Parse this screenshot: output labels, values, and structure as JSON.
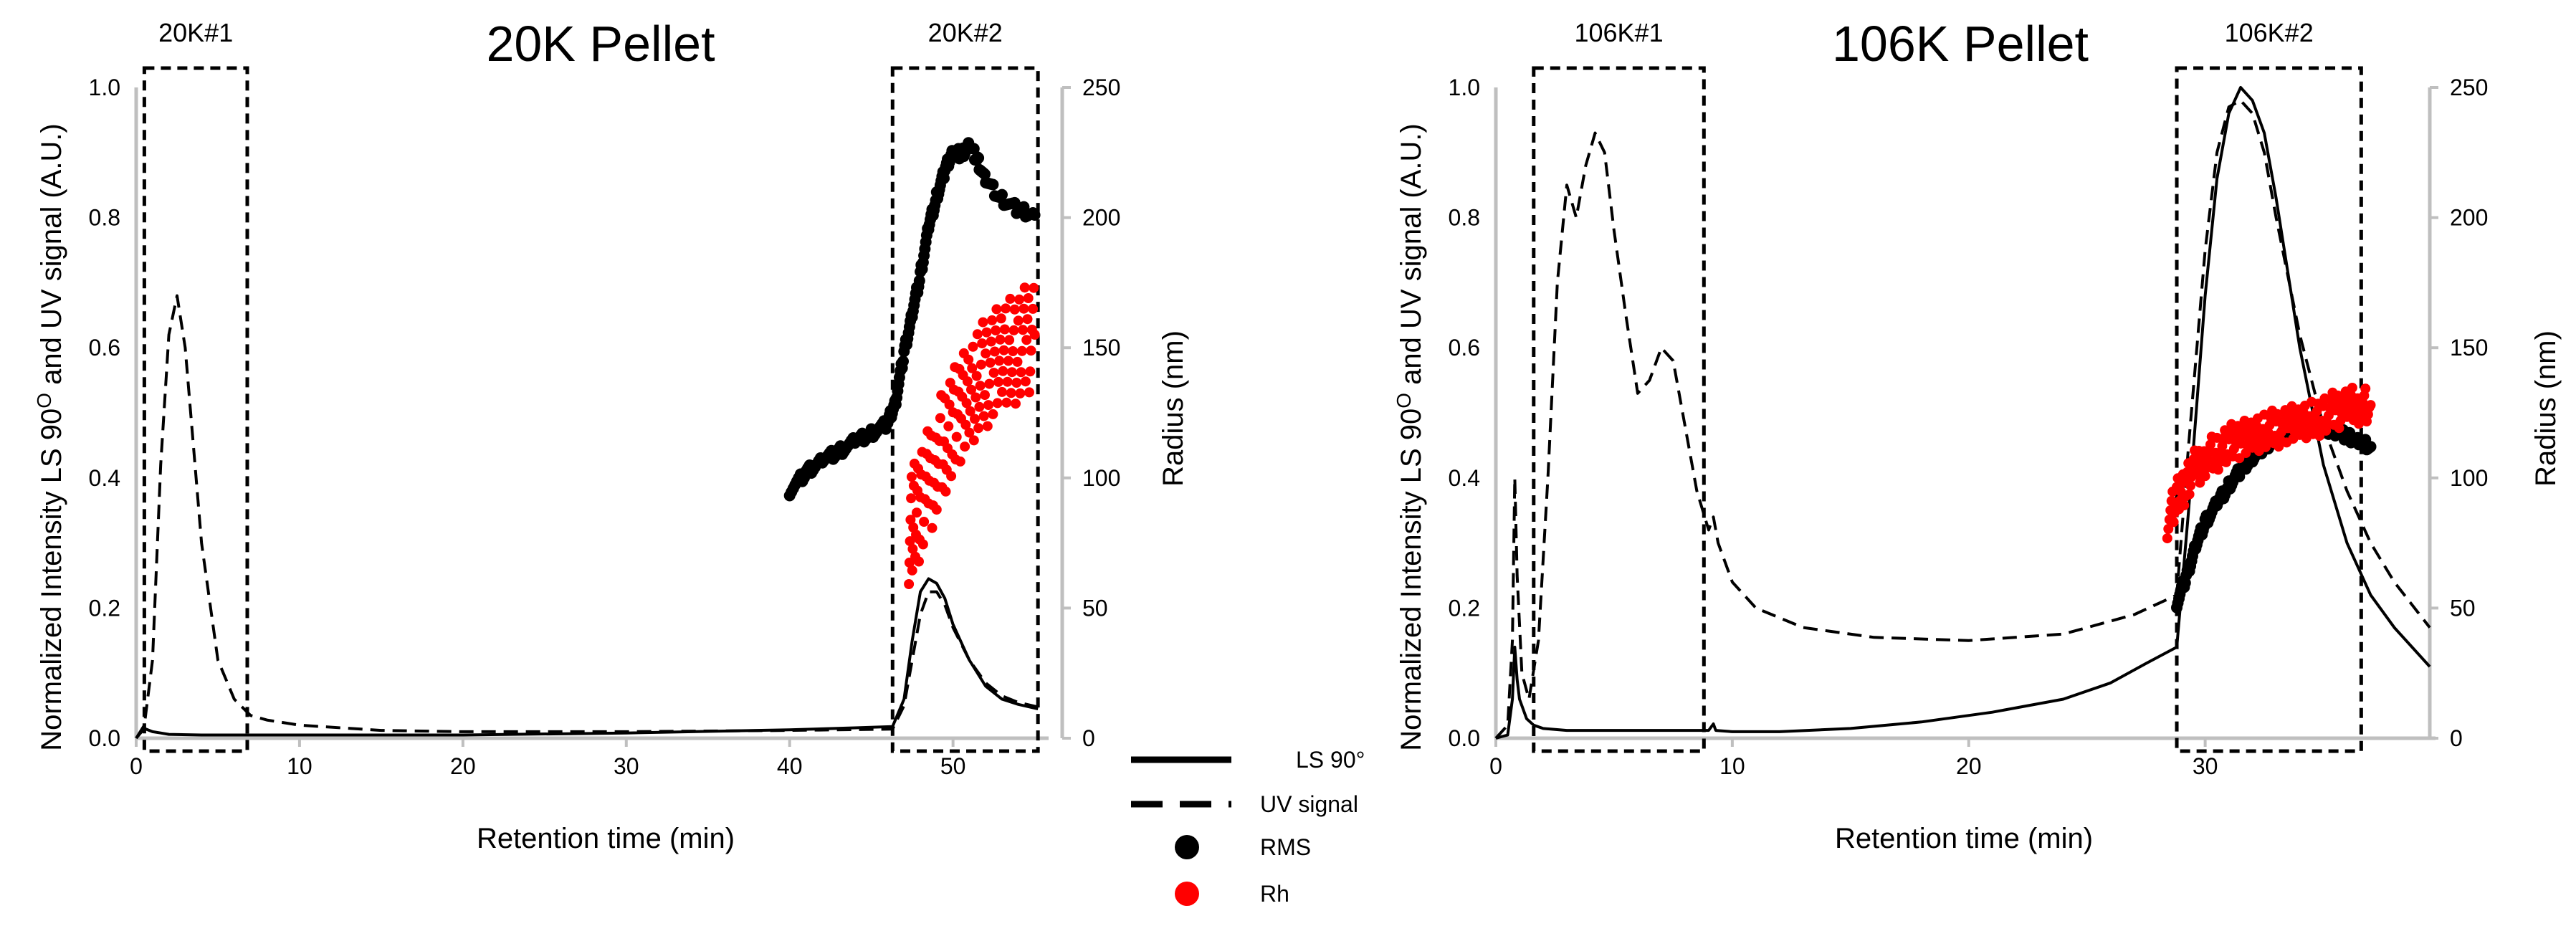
{
  "chart_data": [
    {
      "type": "line",
      "title": "20K Pellet",
      "xlabel": "Retention time (min)",
      "ylabel": "Normalized Intensity LS 90O and UV signal (A.U.)",
      "ylabel_prefix": "Normalized Intensity LS 90",
      "ylabel_sup": "O",
      "ylabel_suffix": " and UV signal (A.U.)",
      "y2label": "Radius (nm)",
      "xlim": [
        0,
        55.5
      ],
      "ylim": [
        0,
        1.0
      ],
      "y2lim": [
        0,
        250
      ],
      "xticks": [
        "0",
        "10",
        "20",
        "30",
        "40",
        "50"
      ],
      "yticks": [
        "0.0",
        "0.2",
        "0.4",
        "0.6",
        "0.8",
        "1.0"
      ],
      "y2ticks": [
        "0",
        "50",
        "100",
        "150",
        "200",
        "250"
      ],
      "boxes": [
        {
          "label": "20K#1",
          "x": [
            0.5,
            6.8
          ]
        },
        {
          "label": "20K#2",
          "x": [
            46.3,
            55.2
          ]
        }
      ],
      "series": [
        {
          "name": "LS 90°",
          "style": "solid",
          "axis": "left",
          "x": [
            0,
            0.5,
            1,
            1.5,
            2,
            4,
            6,
            10,
            20,
            30,
            40,
            44,
            46.3,
            47,
            47.5,
            48,
            48.5,
            49,
            49.5,
            50,
            51,
            52,
            53,
            54,
            55.2
          ],
          "y": [
            0,
            0.015,
            0.01,
            0.008,
            0.006,
            0.005,
            0.005,
            0.005,
            0.005,
            0.008,
            0.013,
            0.016,
            0.018,
            0.06,
            0.15,
            0.225,
            0.245,
            0.238,
            0.215,
            0.175,
            0.12,
            0.08,
            0.06,
            0.052,
            0.045
          ]
        },
        {
          "name": "UV signal",
          "style": "dashed",
          "axis": "left",
          "x": [
            0,
            0.5,
            1,
            1.5,
            2,
            2.5,
            3,
            3.5,
            4,
            5,
            6,
            7,
            8,
            10,
            15,
            20,
            30,
            40,
            46.3,
            47,
            47.5,
            48,
            48.5,
            49,
            49.5,
            50,
            51,
            52,
            53,
            54,
            55.2
          ],
          "y": [
            0,
            0.02,
            0.12,
            0.42,
            0.62,
            0.68,
            0.6,
            0.45,
            0.3,
            0.12,
            0.06,
            0.035,
            0.028,
            0.02,
            0.012,
            0.01,
            0.01,
            0.012,
            0.014,
            0.05,
            0.12,
            0.19,
            0.225,
            0.225,
            0.205,
            0.17,
            0.12,
            0.085,
            0.065,
            0.055,
            0.048
          ]
        },
        {
          "name": "RMS",
          "style": "scatter",
          "color": "#000000",
          "axis": "right",
          "x": [
            40,
            41,
            42,
            43,
            44,
            45,
            46,
            46.5,
            47,
            47.5,
            48,
            48.5,
            49,
            49.5,
            50,
            50.5,
            51,
            51.5,
            52,
            53,
            54,
            55
          ],
          "y": [
            95,
            102,
            107,
            110,
            114,
            117,
            121,
            130,
            148,
            163,
            178,
            196,
            208,
            218,
            226,
            224,
            228,
            222,
            214,
            207,
            203,
            201
          ]
        },
        {
          "name": "Rh",
          "style": "scatter",
          "color": "#ff0000",
          "axis": "right",
          "x": [
            47.3,
            47.6,
            48,
            48.5,
            49,
            49.5,
            50,
            50.5,
            51,
            51.5,
            52,
            52.5,
            53,
            53.5,
            54,
            54.5,
            55
          ],
          "y": [
            80,
            84,
            90,
            98,
            106,
            115,
            120,
            128,
            133,
            137,
            140,
            143,
            146,
            148,
            150,
            153,
            155
          ]
        }
      ]
    },
    {
      "type": "line",
      "title": "106K Pellet",
      "xlabel": "Retention time (min)",
      "ylabel": "Normalized Intensity LS 90O and UV signal (A.U.)",
      "ylabel_prefix": "Normalized Intensity LS 90",
      "ylabel_sup": "O",
      "ylabel_suffix": " and UV signal (A.U.)",
      "y2label": "Radius (nm)",
      "xlim": [
        0,
        39.5
      ],
      "ylim": [
        0,
        1.0
      ],
      "y2lim": [
        0,
        250
      ],
      "xticks": [
        "0",
        "10",
        "20",
        "30"
      ],
      "yticks": [
        "0.0",
        "0.2",
        "0.4",
        "0.6",
        "0.8",
        "1.0"
      ],
      "y2ticks": [
        "0",
        "50",
        "100",
        "150",
        "200",
        "250"
      ],
      "boxes": [
        {
          "label": "106K#1",
          "x": [
            1.6,
            8.8
          ]
        },
        {
          "label": "106K#2",
          "x": [
            28.8,
            36.6
          ]
        }
      ],
      "series": [
        {
          "name": "LS 90°",
          "style": "solid",
          "axis": "left",
          "x": [
            0,
            0.5,
            0.7,
            0.8,
            0.9,
            1.0,
            1.3,
            1.6,
            2,
            3,
            5,
            7,
            9,
            9.2,
            9.3,
            10,
            12,
            15,
            18,
            21,
            24,
            26,
            27.5,
            28.8,
            29.3,
            30,
            30.5,
            31,
            31.5,
            32,
            32.5,
            33,
            34,
            35,
            36,
            37,
            38,
            39.5
          ],
          "y": [
            0,
            0.005,
            0.06,
            0.14,
            0.09,
            0.06,
            0.03,
            0.02,
            0.015,
            0.012,
            0.012,
            0.012,
            0.012,
            0.022,
            0.012,
            0.01,
            0.01,
            0.015,
            0.025,
            0.04,
            0.06,
            0.085,
            0.115,
            0.14,
            0.35,
            0.68,
            0.86,
            0.96,
            1.0,
            0.98,
            0.93,
            0.83,
            0.6,
            0.42,
            0.3,
            0.22,
            0.17,
            0.11
          ]
        },
        {
          "name": "UV signal",
          "style": "dashed",
          "axis": "left",
          "x": [
            0,
            0.5,
            0.7,
            0.8,
            0.9,
            1.1,
            1.4,
            1.8,
            2.2,
            2.6,
            3,
            3.4,
            3.8,
            4.2,
            4.6,
            5,
            5.5,
            6,
            6.5,
            7,
            7.5,
            8,
            8.5,
            9,
            9.2,
            9.4,
            10,
            11,
            13,
            16,
            20,
            24,
            27,
            28.8,
            29.3,
            30,
            30.5,
            31,
            31.5,
            32,
            32.5,
            33,
            34,
            35,
            36,
            37,
            38,
            39.5
          ],
          "y": [
            0,
            0.02,
            0.15,
            0.4,
            0.25,
            0.1,
            0.06,
            0.15,
            0.4,
            0.7,
            0.85,
            0.8,
            0.88,
            0.93,
            0.9,
            0.78,
            0.65,
            0.53,
            0.55,
            0.6,
            0.58,
            0.48,
            0.38,
            0.32,
            0.34,
            0.3,
            0.24,
            0.2,
            0.17,
            0.155,
            0.15,
            0.16,
            0.19,
            0.22,
            0.45,
            0.75,
            0.9,
            0.97,
            0.98,
            0.96,
            0.9,
            0.8,
            0.62,
            0.48,
            0.38,
            0.3,
            0.24,
            0.17
          ]
        },
        {
          "name": "RMS",
          "style": "scatter",
          "color": "#000000",
          "axis": "right",
          "x": [
            28.8,
            29.2,
            29.6,
            30,
            30.5,
            31,
            31.5,
            32,
            32.5,
            33,
            33.5,
            34,
            34.5,
            35,
            35.5,
            36,
            36.5,
            37
          ],
          "y": [
            52,
            62,
            74,
            83,
            90,
            97,
            103,
            108,
            112,
            115,
            117,
            118,
            119,
            119,
            118,
            116,
            114,
            112
          ]
        },
        {
          "name": "Rh",
          "style": "scatter",
          "color": "#ff0000",
          "axis": "right",
          "x": [
            28.4,
            28.8,
            29.2,
            29.6,
            30,
            30.5,
            31,
            31.5,
            32,
            32.5,
            33,
            33.5,
            34,
            34.5,
            35,
            35.5,
            36,
            36.5,
            37
          ],
          "y": [
            84,
            92,
            98,
            104,
            107,
            110,
            113,
            115,
            117,
            118,
            119,
            120,
            121,
            122,
            124,
            126,
            127,
            128,
            128
          ]
        }
      ]
    }
  ],
  "legend": {
    "entries": [
      {
        "label": "LS 90°",
        "marker": "solid-line"
      },
      {
        "label": "UV signal",
        "marker": "dashed-line"
      },
      {
        "label": "RMS",
        "marker": "black-dot"
      },
      {
        "label": "Rh",
        "marker": "red-dot"
      }
    ]
  }
}
